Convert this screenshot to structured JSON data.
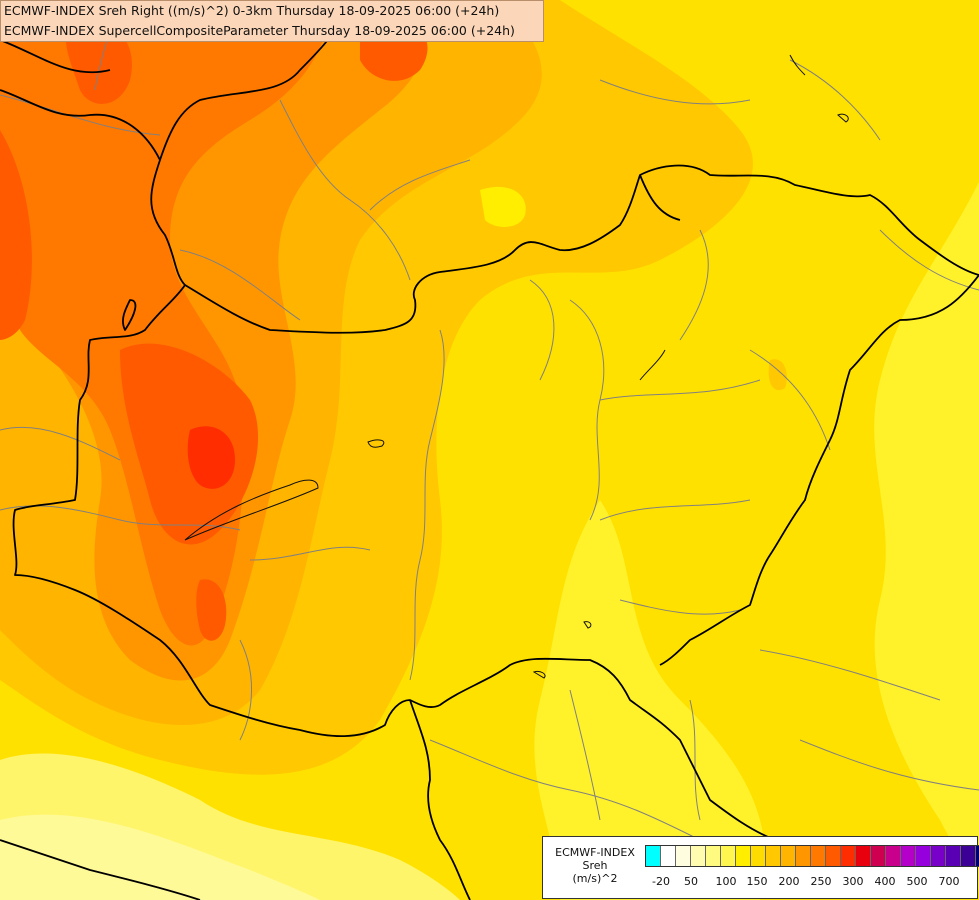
{
  "header": {
    "line1": "ECMWF-INDEX Sreh Right ((m/s)^2) 0-3km Thursday 18-09-2025 06:00 (+24h)",
    "line2": "ECMWF-INDEX SupercellCompositeParameter Thursday 18-09-2025 06:00 (+24h)"
  },
  "legend": {
    "line1": "ECMWF-INDEX",
    "line2": "Sreh",
    "line3": "(m/s)^2",
    "swatches": [
      "#00ffff",
      "#ffffff",
      "#fffde0",
      "#fffcb0",
      "#fffa80",
      "#fff650",
      "#ffee00",
      "#ffdc00",
      "#ffc800",
      "#ffb400",
      "#ff9600",
      "#ff7800",
      "#ff5a00",
      "#ff2d00",
      "#e8000f",
      "#d00050",
      "#c8008c",
      "#b400c8",
      "#9600dc",
      "#7800c8",
      "#5a00b4",
      "#3c0096",
      "#00006e"
    ],
    "ticks": [
      "-20",
      "50",
      "100",
      "150",
      "200",
      "250",
      "300",
      "400",
      "500",
      "700"
    ]
  },
  "colors": {
    "background": "#ffe100",
    "border_country": "#000000",
    "border_region": "#808080"
  }
}
